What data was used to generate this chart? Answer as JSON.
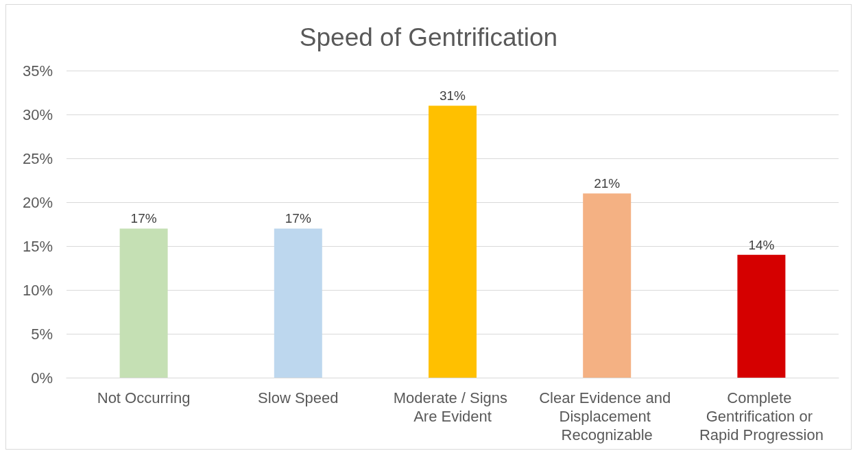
{
  "chart_data": {
    "type": "bar",
    "title": "Speed of Gentrification",
    "categories": [
      "Not Occurring",
      "Slow Speed",
      "Moderate / Signs Are Evident",
      "Clear Evidence and Displacement Recognizable",
      "Complete Gentrification or Rapid Progression"
    ],
    "values": [
      17,
      17,
      31,
      21,
      14
    ],
    "colors": [
      "#c5e0b4",
      "#bdd7ee",
      "#ffc000",
      "#f4b183",
      "#d50000"
    ],
    "value_labels": [
      "17%",
      "17%",
      "31%",
      "21%",
      "14%"
    ],
    "ylim": [
      0,
      35
    ],
    "yticks": [
      {
        "value": 0,
        "label": "0%"
      },
      {
        "value": 5,
        "label": "5%"
      },
      {
        "value": 10,
        "label": "10%"
      },
      {
        "value": 15,
        "label": "15%"
      },
      {
        "value": 20,
        "label": "20%"
      },
      {
        "value": 25,
        "label": "25%"
      },
      {
        "value": 30,
        "label": "30%"
      },
      {
        "value": 35,
        "label": "35%"
      }
    ],
    "grid": "y"
  }
}
